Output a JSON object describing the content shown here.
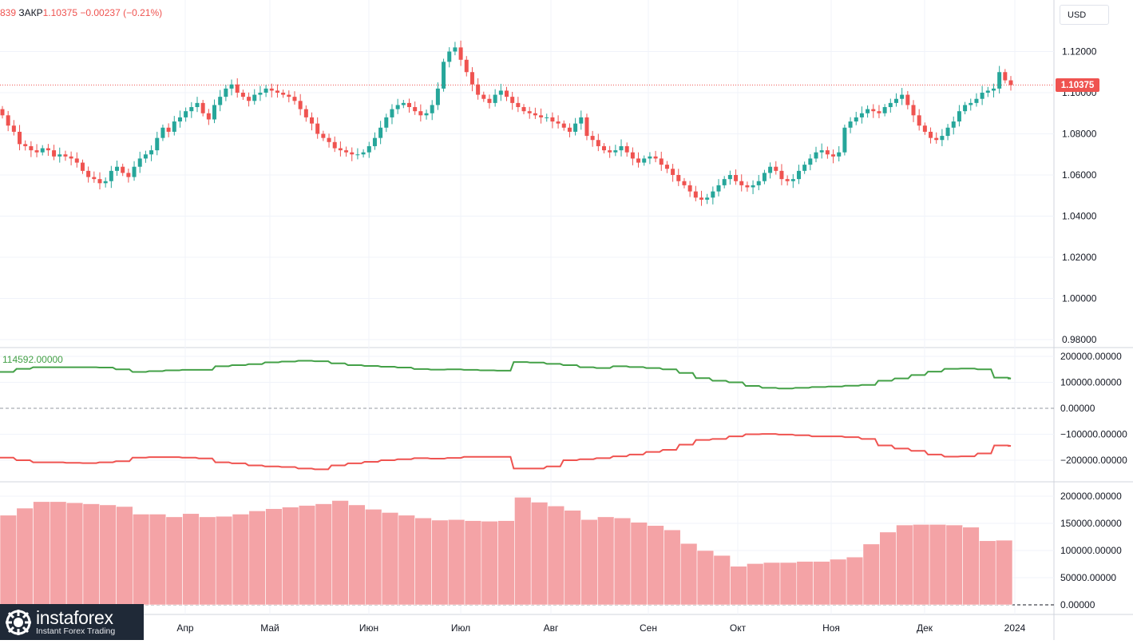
{
  "legend": {
    "left_fragment": "839",
    "symbol_label": "ЗАКР",
    "close": "1.10375",
    "change": "−0.00237 (−0.21%)"
  },
  "currency_button": "USD",
  "last_price_label": "1.10375",
  "colors": {
    "up": "#26a69a",
    "down": "#ef5350",
    "net_long": "#43a047",
    "net_short": "#ef5350",
    "open_interest": "#f4a3a6",
    "grid": "#f0f3fa",
    "axis_text": "#131722"
  },
  "price_axis_labels": [
    "1.12000",
    "1.10000",
    "1.08000",
    "1.06000",
    "1.04000",
    "1.02000",
    "1.00000",
    "0.98000"
  ],
  "cot_axis_labels": [
    "200000.00000",
    "100000.00000",
    "0.00000",
    "−100000.00000",
    "−200000.00000"
  ],
  "oi_axis_labels": [
    "200000.00000",
    "150000.00000",
    "100000.00000",
    "50000.00000",
    "0.00000"
  ],
  "indicator_label": "114592.00000",
  "time_axis_labels": [
    "Апр",
    "Май",
    "Июн",
    "Июл",
    "Авг",
    "Сен",
    "Окт",
    "Ноя",
    "Дек",
    "2024"
  ],
  "logo": {
    "name": "instaforex",
    "tagline": "Instant Forex Trading"
  },
  "chart_data": [
    {
      "type": "candlestick",
      "ylabel": "USD",
      "ylim": [
        0.975,
        1.13
      ],
      "close": [
        1.089,
        1.084,
        1.081,
        1.075,
        1.074,
        1.072,
        1.071,
        1.073,
        1.072,
        1.069,
        1.07,
        1.069,
        1.068,
        1.066,
        1.062,
        1.059,
        1.058,
        1.056,
        1.057,
        1.062,
        1.064,
        1.061,
        1.059,
        1.064,
        1.068,
        1.07,
        1.072,
        1.078,
        1.083,
        1.081,
        1.086,
        1.088,
        1.091,
        1.093,
        1.095,
        1.09,
        1.087,
        1.094,
        1.098,
        1.102,
        1.104,
        1.1,
        1.098,
        1.096,
        1.099,
        1.1,
        1.102,
        1.101,
        1.1,
        1.099,
        1.098,
        1.096,
        1.092,
        1.088,
        1.085,
        1.08,
        1.078,
        1.076,
        1.073,
        1.072,
        1.071,
        1.07,
        1.07,
        1.071,
        1.074,
        1.078,
        1.083,
        1.088,
        1.092,
        1.094,
        1.095,
        1.093,
        1.091,
        1.089,
        1.09,
        1.094,
        1.102,
        1.115,
        1.12,
        1.122,
        1.116,
        1.11,
        1.104,
        1.099,
        1.097,
        1.095,
        1.099,
        1.101,
        1.098,
        1.095,
        1.093,
        1.091,
        1.09,
        1.089,
        1.088,
        1.088,
        1.086,
        1.085,
        1.083,
        1.081,
        1.085,
        1.088,
        1.079,
        1.077,
        1.074,
        1.072,
        1.071,
        1.072,
        1.074,
        1.071,
        1.068,
        1.066,
        1.068,
        1.069,
        1.068,
        1.065,
        1.063,
        1.06,
        1.057,
        1.055,
        1.052,
        1.049,
        1.048,
        1.049,
        1.052,
        1.055,
        1.058,
        1.06,
        1.057,
        1.055,
        1.054,
        1.055,
        1.057,
        1.061,
        1.064,
        1.062,
        1.058,
        1.057,
        1.058,
        1.062,
        1.065,
        1.068,
        1.071,
        1.072,
        1.07,
        1.069,
        1.071,
        1.083,
        1.086,
        1.088,
        1.09,
        1.092,
        1.091,
        1.09,
        1.093,
        1.095,
        1.097,
        1.099,
        1.094,
        1.089,
        1.084,
        1.081,
        1.078,
        1.077,
        1.079,
        1.083,
        1.086,
        1.091,
        1.094,
        1.095,
        1.097,
        1.1,
        1.101,
        1.102,
        1.11,
        1.106,
        1.1037
      ],
      "high_low_note": "wicks approximate"
    },
    {
      "type": "line",
      "title": "",
      "series": [
        {
          "values": [
            140000,
            152000,
            158000,
            158000,
            158000,
            158000,
            157000,
            150000,
            140000,
            143000,
            146000,
            148000,
            148000,
            162000,
            166000,
            170000,
            177000,
            180000,
            183000,
            181000,
            173000,
            166000,
            163000,
            160000,
            157000,
            151000,
            149000,
            150000,
            148000,
            146000,
            145000,
            178000,
            176000,
            171000,
            166000,
            158000,
            155000,
            162000,
            159000,
            155000,
            150000,
            136000,
            116000,
            106000,
            100000,
            86000,
            79000,
            76000,
            79000,
            82000,
            84000,
            87000,
            90000,
            106000,
            115000,
            128000,
            141000,
            152000,
            153000,
            150000,
            118000,
            114592
          ]
        },
        {
          "values": [
            -190000,
            -200000,
            -208000,
            -208000,
            -210000,
            -211000,
            -208000,
            -204000,
            -190000,
            -188000,
            -188000,
            -190000,
            -193000,
            -208000,
            -212000,
            -220000,
            -224000,
            -226000,
            -232000,
            -235000,
            -220000,
            -212000,
            -206000,
            -200000,
            -196000,
            -192000,
            -194000,
            -191000,
            -187000,
            -187000,
            -187000,
            -232000,
            -232000,
            -224000,
            -200000,
            -196000,
            -192000,
            -185000,
            -178000,
            -168000,
            -160000,
            -140000,
            -122000,
            -118000,
            -108000,
            -100000,
            -99000,
            -101000,
            -104000,
            -108000,
            -108000,
            -111000,
            -118000,
            -143000,
            -155000,
            -164000,
            -178000,
            -186000,
            -185000,
            -174000,
            -143000,
            -145000
          ]
        }
      ]
    },
    {
      "type": "bar",
      "values": [
        165000,
        178000,
        190000,
        190000,
        188000,
        186000,
        184000,
        181000,
        167000,
        167000,
        162000,
        168000,
        162000,
        163000,
        167000,
        173000,
        177000,
        180000,
        183000,
        186000,
        192000,
        184000,
        176000,
        170000,
        165000,
        160000,
        156000,
        157000,
        155000,
        154000,
        155000,
        198000,
        189000,
        182000,
        174000,
        157000,
        162000,
        160000,
        152000,
        146000,
        138000,
        113000,
        100000,
        91000,
        71000,
        76000,
        78000,
        78000,
        80000,
        80000,
        84000,
        88000,
        112000,
        134000,
        147000,
        148000,
        148000,
        147000,
        143000,
        118000,
        119000
      ]
    }
  ]
}
